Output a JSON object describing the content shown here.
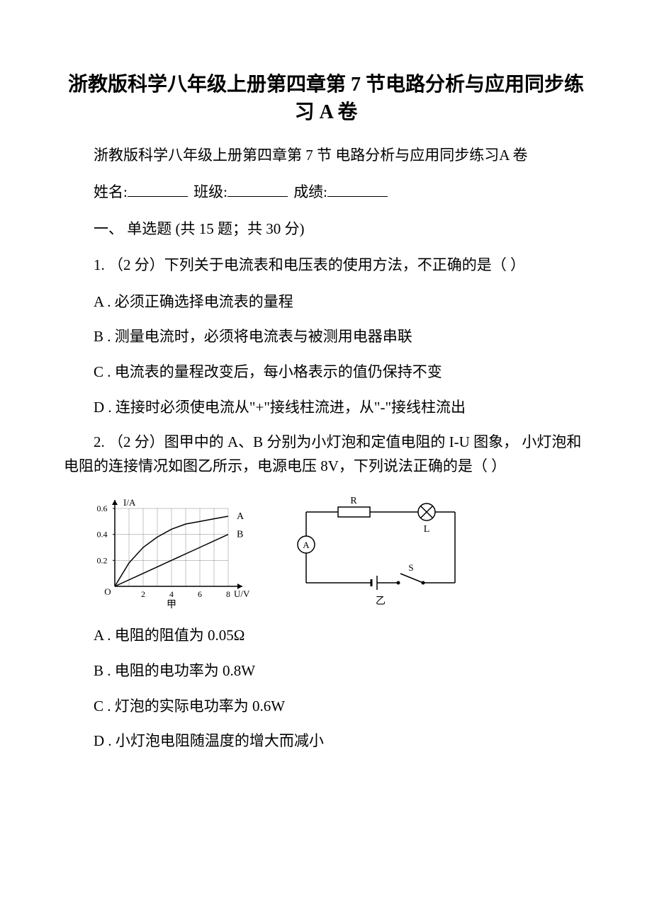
{
  "title": "浙教版科学八年级上册第四章第 7 节电路分析与应用同步练习 A 卷",
  "subtitle": "浙教版科学八年级上册第四章第 7 节 电路分析与应用同步练习A 卷",
  "form": {
    "name_label": "姓名:",
    "class_label": "班级:",
    "score_label": "成绩:"
  },
  "section1": "一、 单选题 (共 15 题；共 30 分)",
  "q1": {
    "text": "1. （2 分）下列关于电流表和电压表的使用方法，不正确的是（    ）",
    "optA": "A . 必须正确选择电流表的量程",
    "optB": "B . 测量电流时，必须将电流表与被测用电器串联",
    "optC": "C . 电流表的量程改变后，每小格表示的值仍保持不变",
    "optD": "D . 连接时必须使电流从\"+\"接线柱流进，从\"-\"接线柱流出"
  },
  "q2": {
    "text": "2. （2 分）图甲中的 A、B 分别为小灯泡和定值电阻的 I-U 图象， 小灯泡和电阻的连接情况如图乙所示，电源电压 8V，下列说法正确的是（ ）",
    "optA": "A . 电阻的阻值为 0.05Ω",
    "optB": "B . 电阻的电功率为 0.8W",
    "optC": "C . 灯泡的实际电功率为 0.6W",
    "optD": "D . 小灯泡电阻随温度的增大而减小"
  },
  "chart": {
    "y_label": "I/A",
    "x_label": "U/V",
    "y_ticks": [
      "0.2",
      "0.4",
      "0.6"
    ],
    "x_ticks": [
      "2",
      "4",
      "6",
      "8"
    ],
    "origin": "O",
    "caption": "甲",
    "curve_a_label": "A",
    "curve_b_label": "B",
    "axis_color": "#000000",
    "grid_color": "#888888",
    "curve_color": "#000000",
    "bg_color": "#ffffff",
    "curve_a_points": [
      [
        0,
        0
      ],
      [
        1,
        0.18
      ],
      [
        2,
        0.3
      ],
      [
        3,
        0.38
      ],
      [
        4,
        0.44
      ],
      [
        5,
        0.48
      ],
      [
        6,
        0.5
      ],
      [
        7,
        0.52
      ],
      [
        8,
        0.54
      ]
    ],
    "curve_b_points": [
      [
        0,
        0
      ],
      [
        2,
        0.1
      ],
      [
        4,
        0.2
      ],
      [
        6,
        0.3
      ],
      [
        8,
        0.4
      ]
    ]
  },
  "circuit": {
    "caption": "乙",
    "r_label": "R",
    "l_label": "L",
    "s_label": "S",
    "a_label": "A",
    "line_color": "#000000"
  }
}
